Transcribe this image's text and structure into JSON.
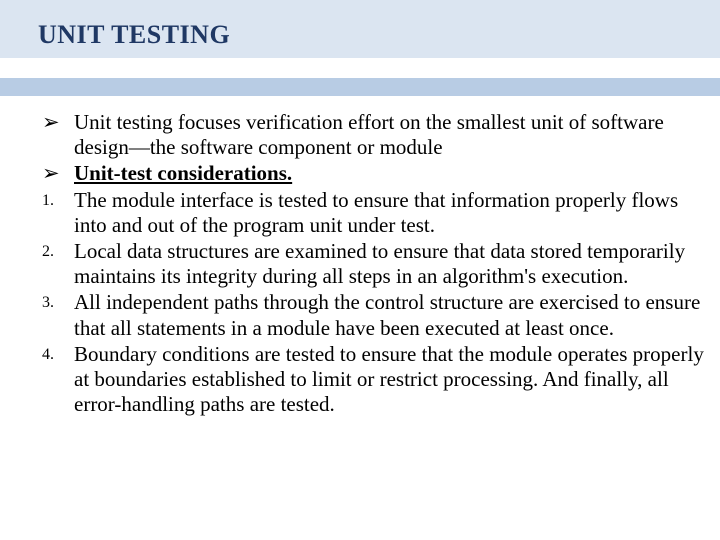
{
  "colors": {
    "header_band": "#dbe5f1",
    "divider": "#b8cce4",
    "title": "#1f3864",
    "body_text": "#000000",
    "background": "#ffffff"
  },
  "typography": {
    "title_fontsize": 26,
    "body_fontsize": 21,
    "marker_fontsize": 16,
    "font_family": "Times New Roman"
  },
  "title": "UNIT TESTING",
  "items": [
    {
      "marker": "➢",
      "marker_type": "bullet",
      "bold": false,
      "underline": false,
      "text": "Unit testing focuses verification effort on the smallest unit of software design—the software component or module"
    },
    {
      "marker": "➢",
      "marker_type": "bullet",
      "bold": true,
      "underline": true,
      "text": "Unit-test considerations."
    },
    {
      "marker": "1.",
      "marker_type": "number",
      "bold": false,
      "underline": false,
      "text": " The module interface is tested to ensure that information properly flows into and out of the program unit under test."
    },
    {
      "marker": "2.",
      "marker_type": "number",
      "bold": false,
      "underline": false,
      "text": "Local data structures are examined to ensure that data stored temporarily maintains its integrity during all steps in an algorithm's execution."
    },
    {
      "marker": "3.",
      "marker_type": "number",
      "bold": false,
      "underline": false,
      "text": "All independent paths through the control structure are exercised to ensure that all statements in a module have been executed at least once."
    },
    {
      "marker": "4.",
      "marker_type": "number",
      "bold": false,
      "underline": false,
      "text": "Boundary conditions are tested to ensure that the module operates properly at boundaries established to limit or restrict processing. And finally, all error-handling paths are tested."
    }
  ]
}
